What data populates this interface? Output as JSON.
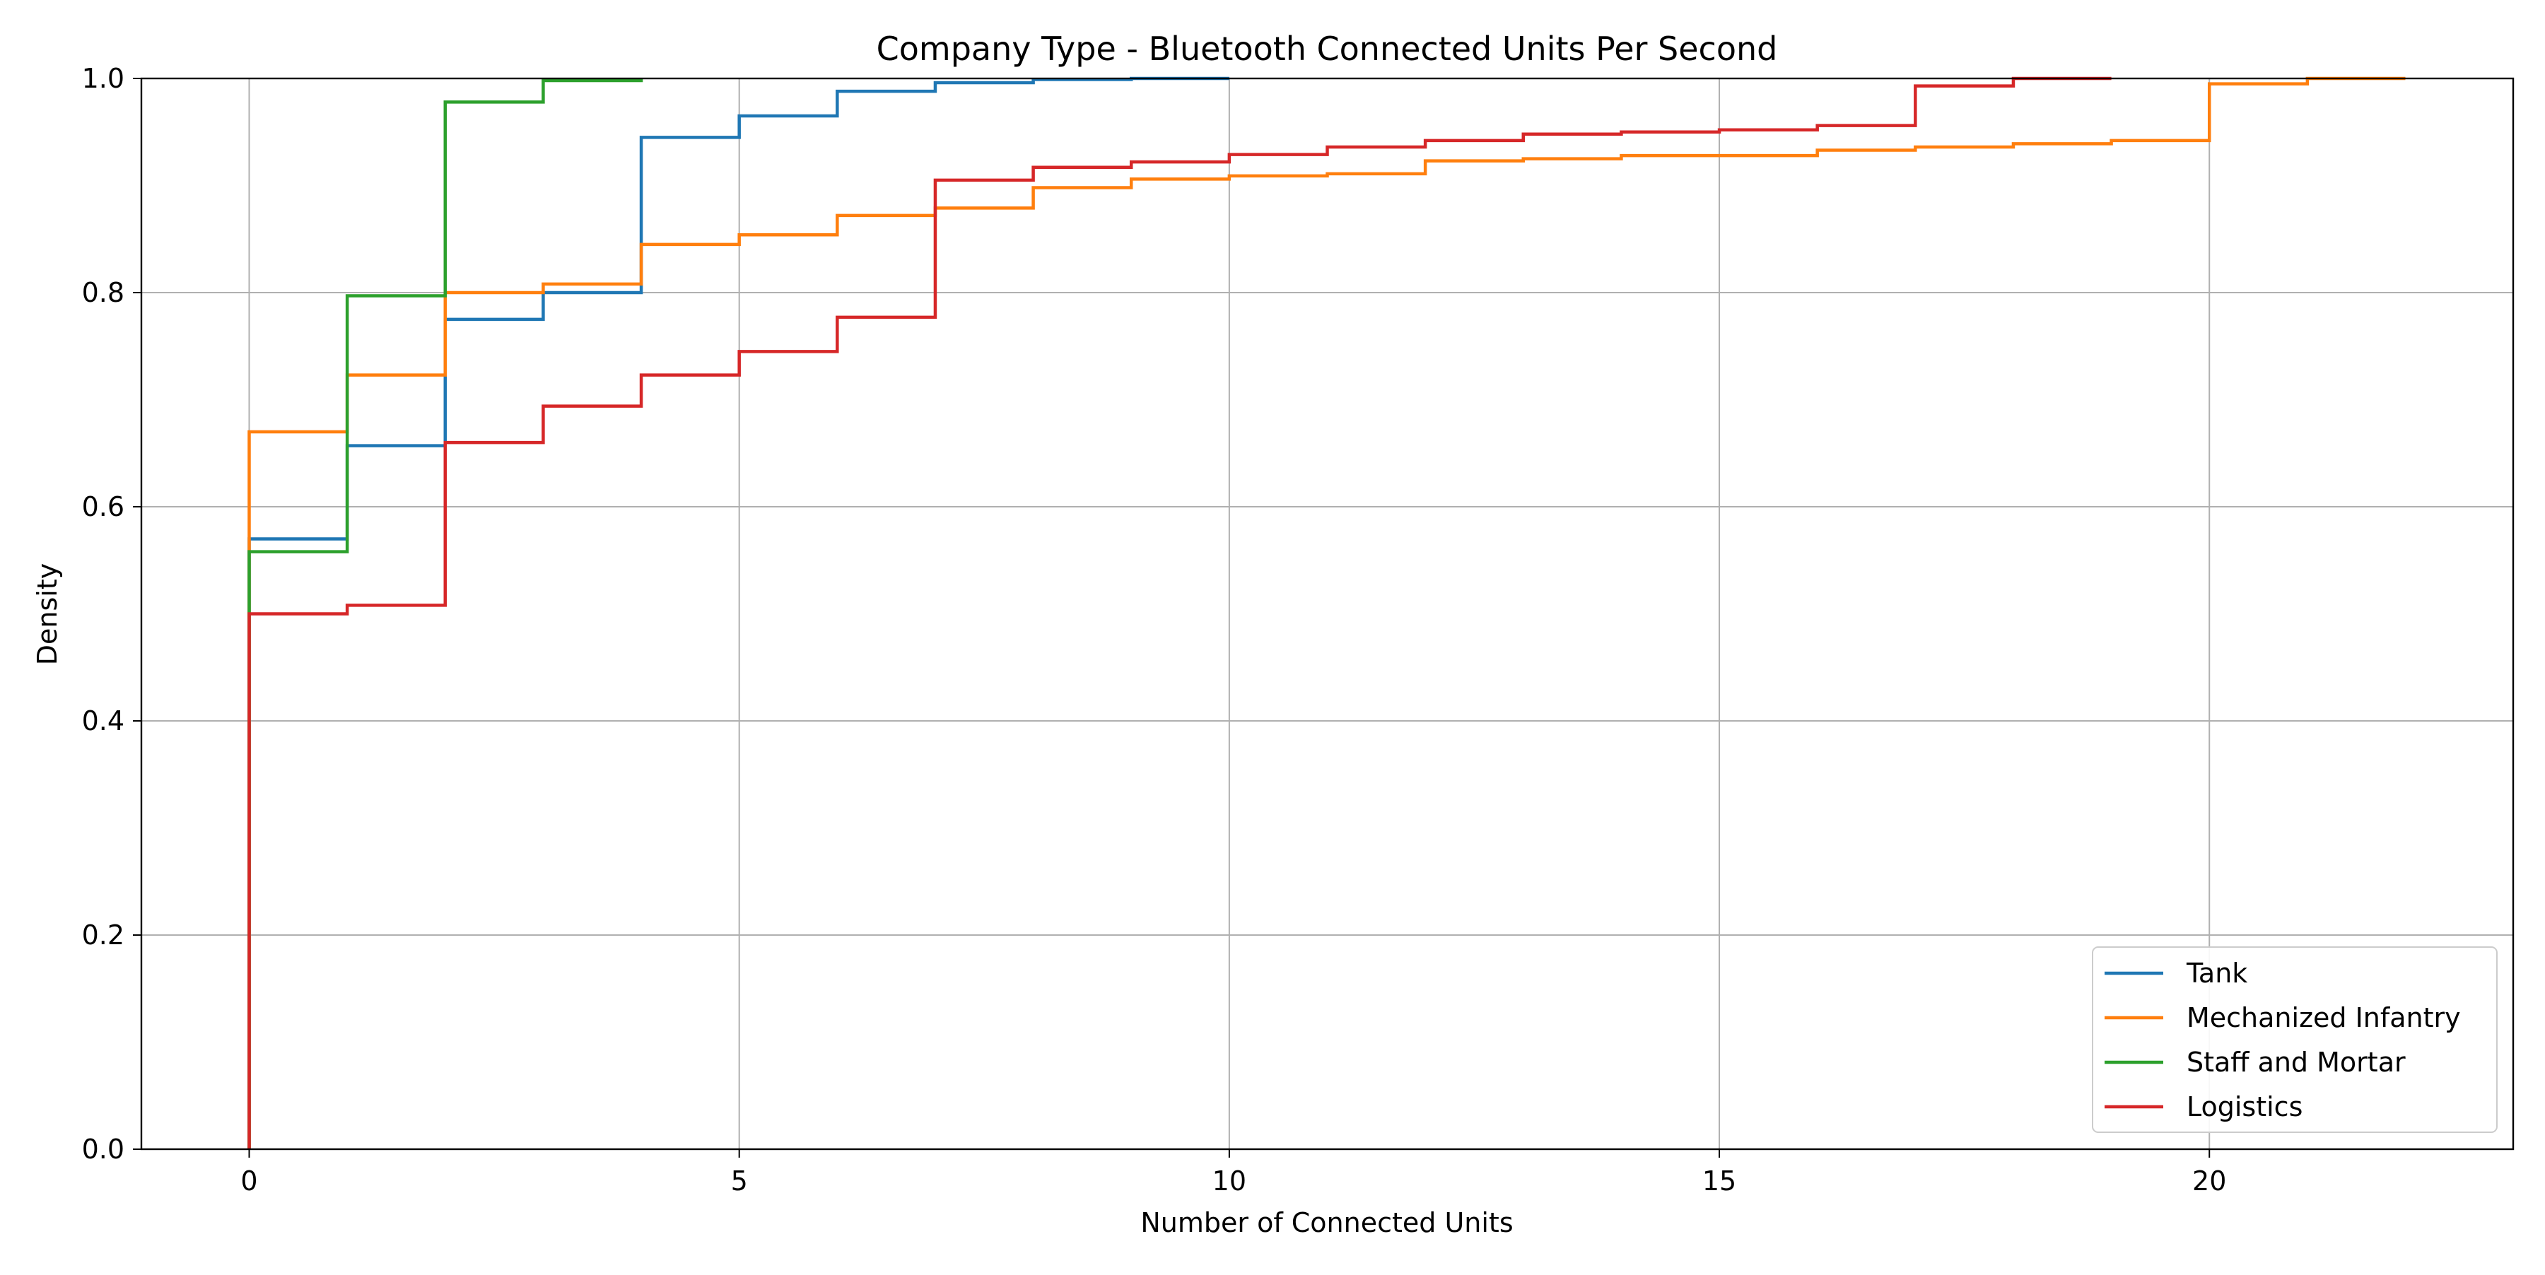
{
  "chart_data": {
    "type": "line",
    "subtype": "step-ecdf",
    "title": "Company Type - Bluetooth Connected Units Per Second",
    "xlabel": "Number of Connected Units",
    "ylabel": "Density",
    "xlim": [
      -1.1,
      23.1
    ],
    "ylim": [
      0,
      1.0
    ],
    "xticks": [
      0,
      5,
      10,
      15,
      20
    ],
    "yticks": [
      0.0,
      0.2,
      0.4,
      0.6,
      0.8,
      1.0
    ],
    "xtick_labels": [
      "0",
      "5",
      "10",
      "15",
      "20"
    ],
    "ytick_labels": [
      "0.0",
      "0.2",
      "0.4",
      "0.6",
      "0.8",
      "1.0"
    ],
    "grid": true,
    "legend_position": "lower-right",
    "series": [
      {
        "name": "Tank",
        "color": "#1f77b4",
        "x": [
          0,
          1,
          2,
          3,
          4,
          5,
          6,
          7,
          8,
          9,
          10
        ],
        "y": [
          0.57,
          0.657,
          0.775,
          0.8,
          0.945,
          0.965,
          0.988,
          0.996,
          0.999,
          1.0,
          1.0
        ]
      },
      {
        "name": "Mechanized Infantry",
        "color": "#ff7f0e",
        "x": [
          0,
          1,
          2,
          3,
          4,
          5,
          6,
          7,
          8,
          9,
          10,
          11,
          12,
          13,
          14,
          15,
          16,
          17,
          18,
          19,
          20,
          21,
          22
        ],
        "y": [
          0.67,
          0.723,
          0.8,
          0.808,
          0.845,
          0.854,
          0.872,
          0.879,
          0.898,
          0.906,
          0.909,
          0.911,
          0.923,
          0.925,
          0.928,
          0.928,
          0.933,
          0.936,
          0.939,
          0.942,
          0.995,
          1.0,
          1.0
        ]
      },
      {
        "name": "Staff and Mortar",
        "color": "#2ca02c",
        "x": [
          0,
          1,
          2,
          3,
          4
        ],
        "y": [
          0.558,
          0.797,
          0.978,
          0.998,
          1.0
        ]
      },
      {
        "name": "Logistics",
        "color": "#d62728",
        "x": [
          0,
          1,
          2,
          3,
          4,
          5,
          6,
          7,
          8,
          9,
          10,
          11,
          12,
          13,
          14,
          15,
          16,
          17,
          18,
          19
        ],
        "y": [
          0.5,
          0.508,
          0.66,
          0.694,
          0.723,
          0.745,
          0.777,
          0.905,
          0.917,
          0.922,
          0.929,
          0.936,
          0.942,
          0.948,
          0.95,
          0.952,
          0.956,
          0.993,
          1.0,
          1.0
        ]
      }
    ]
  }
}
